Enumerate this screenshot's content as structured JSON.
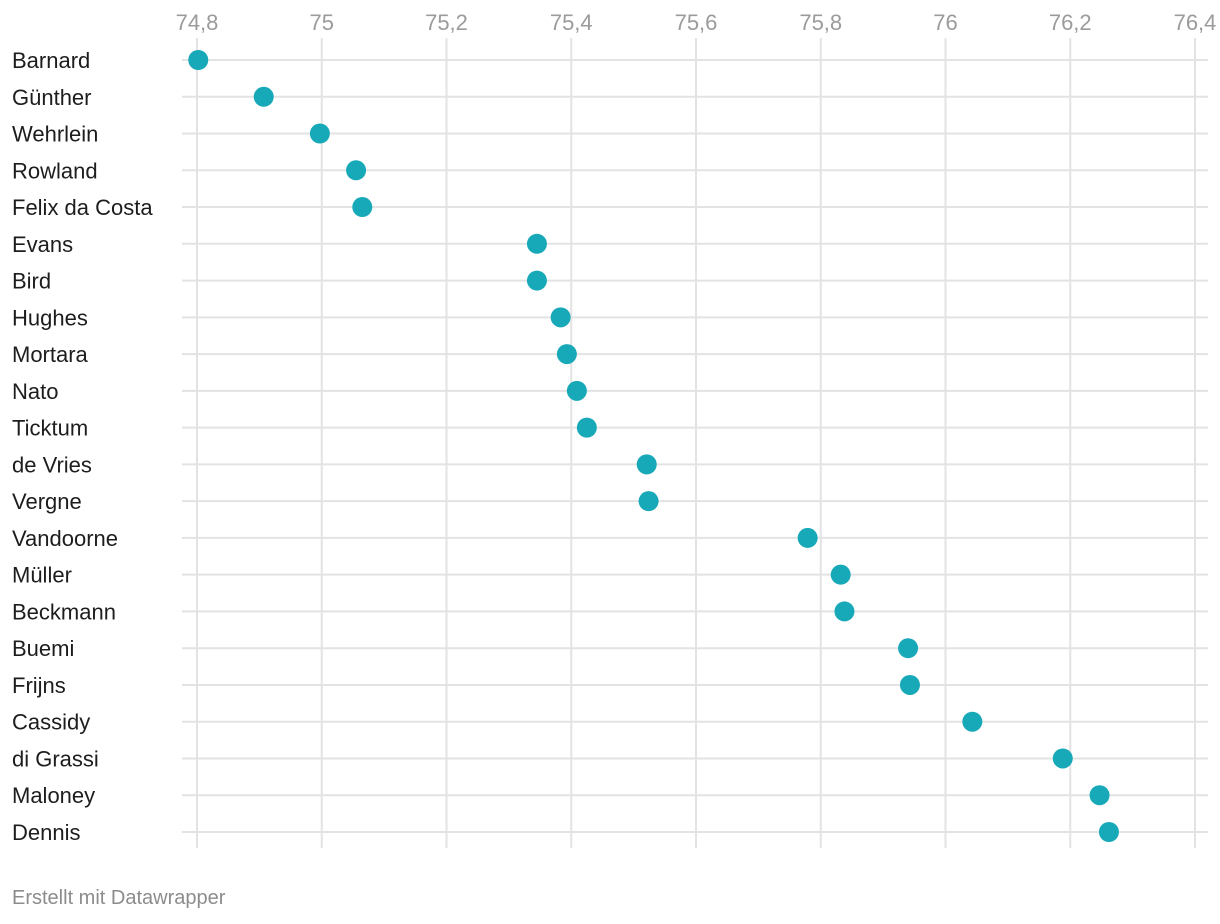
{
  "chart_data": {
    "type": "scatter",
    "orientation": "horizontal-dot",
    "x_ticks": [
      74.8,
      75.0,
      75.2,
      75.4,
      75.6,
      75.8,
      76.0,
      76.2,
      76.4
    ],
    "x_tick_labels": [
      "74,8",
      "75",
      "75,2",
      "75,4",
      "75,6",
      "75,8",
      "76",
      "76,2",
      "76,4"
    ],
    "xlim": [
      74.8,
      76.4
    ],
    "categories": [
      "Barnard",
      "Günther",
      "Wehrlein",
      "Rowland",
      "Felix da Costa",
      "Evans",
      "Bird",
      "Hughes",
      "Mortara",
      "Nato",
      "Ticktum",
      "de Vries",
      "Vergne",
      "Vandoorne",
      "Müller",
      "Beckmann",
      "Buemi",
      "Frijns",
      "Cassidy",
      "di Grassi",
      "Maloney",
      "Dennis"
    ],
    "values": [
      74.802,
      74.907,
      74.997,
      75.055,
      75.065,
      75.345,
      75.345,
      75.383,
      75.393,
      75.409,
      75.425,
      75.521,
      75.524,
      75.779,
      75.832,
      75.838,
      75.94,
      75.943,
      76.043,
      76.188,
      76.247,
      76.262
    ],
    "grid": true,
    "legend": "none",
    "point_color": "#18a9b9",
    "grid_color": "#e3e3e3"
  },
  "footer": {
    "credit": "Erstellt mit Datawrapper"
  }
}
